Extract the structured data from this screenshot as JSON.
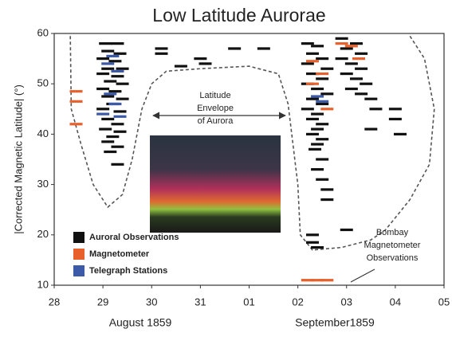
{
  "chart_data": {
    "type": "scatter",
    "title": "Low Latitude Aurorae",
    "y_label": "|Corrected Magnetic Latitude| (°)",
    "x_group_labels": [
      "August 1859",
      "September1859"
    ],
    "xlim": [
      0,
      8
    ],
    "ylim": [
      10,
      60
    ],
    "xticks": [
      {
        "value": 0,
        "label": "28"
      },
      {
        "value": 1,
        "label": "29"
      },
      {
        "value": 2,
        "label": "30"
      },
      {
        "value": 3,
        "label": "31"
      },
      {
        "value": 4,
        "label": "01"
      },
      {
        "value": 5,
        "label": "02"
      },
      {
        "value": 6,
        "label": "03"
      },
      {
        "value": 7,
        "label": "04"
      },
      {
        "value": 8,
        "label": "05"
      }
    ],
    "yticks": [
      10,
      20,
      30,
      40,
      50,
      60
    ],
    "legend": "bottom-left",
    "annotations": [
      {
        "lines": [
          "Latitude",
          "Envelope",
          "of Aurora"
        ]
      },
      {
        "lines": [
          "Bombay",
          "Magnetometer",
          "Observations"
        ]
      }
    ],
    "envelope": {
      "color": "#555555",
      "x": [
        0.33,
        0.35,
        0.55,
        0.8,
        1.1,
        1.4,
        1.6,
        1.8,
        2.0,
        2.3,
        3.0,
        4.0,
        4.6,
        4.8,
        5.0,
        5.05,
        5.3,
        5.9,
        6.5,
        6.8,
        7.3,
        7.7,
        7.8,
        7.6,
        7.3
      ],
      "values": [
        59.5,
        45,
        38,
        30,
        25.5,
        28,
        35,
        45,
        50,
        52.5,
        53,
        53.5,
        52,
        46,
        30,
        20,
        17,
        17.5,
        19,
        21,
        27,
        34,
        45,
        55,
        59.5
      ]
    },
    "series": [
      {
        "name": "Auroral Observations",
        "color": "#111111",
        "x": [
          1.05,
          1.3,
          1.1,
          1.35,
          1.0,
          1.25,
          1.1,
          1.4,
          1.0,
          1.3,
          1.15,
          1.4,
          1.0,
          1.25,
          1.1,
          1.4,
          1.2,
          1.0,
          1.35,
          1.1,
          1.3,
          1.05,
          1.35,
          1.2,
          1.1,
          1.3,
          1.15,
          1.3,
          2.2,
          2.2,
          3.0,
          3.1,
          2.6,
          3.7,
          4.3,
          5.2,
          5.4,
          5.3,
          5.5,
          5.2,
          5.6,
          5.3,
          5.5,
          5.2,
          5.4,
          5.6,
          5.3,
          5.5,
          5.2,
          5.4,
          5.3,
          5.5,
          5.4,
          5.3,
          5.5,
          5.4,
          5.35,
          5.5,
          5.4,
          5.5,
          5.6,
          5.6,
          5.3,
          5.3,
          5.4,
          5.9,
          6.2,
          6.0,
          6.3,
          5.9,
          6.1,
          6.3,
          6.0,
          6.2,
          6.4,
          6.1,
          6.3,
          6.5,
          6.5,
          6.0,
          6.6,
          7.0,
          7.0,
          7.1
        ],
        "values": [
          58,
          58,
          56.5,
          56,
          55,
          54.5,
          53,
          53,
          52,
          51.5,
          50.5,
          50,
          49,
          48.5,
          47.5,
          47,
          46,
          45,
          44.5,
          43,
          42,
          41,
          40.5,
          39.5,
          38.5,
          37.5,
          36.5,
          34,
          57,
          56,
          55,
          54,
          53.5,
          57,
          57,
          58,
          57.5,
          56,
          55,
          54,
          53,
          52,
          51,
          50,
          49,
          48,
          47,
          46,
          45,
          44,
          43,
          42,
          41,
          40,
          39,
          38,
          37,
          35,
          33,
          31,
          29,
          27,
          20,
          18.5,
          17.5,
          59,
          58,
          57,
          56,
          55,
          54,
          53,
          52,
          51,
          50,
          49,
          48,
          47,
          41,
          21,
          45,
          45,
          43,
          40
        ]
      },
      {
        "name": "Magnetometer",
        "color": "#e8602c",
        "x": [
          0.45,
          0.45,
          0.45,
          5.3,
          5.5,
          5.3,
          5.6,
          5.9,
          6.1,
          6.25,
          5.2,
          5.4,
          5.6
        ],
        "values": [
          48.5,
          46.5,
          42,
          54.5,
          52,
          50,
          45,
          58,
          57.5,
          55,
          11,
          11,
          11
        ]
      },
      {
        "name": "Telegraph Stations",
        "color": "#3c5aa8",
        "x": [
          1.1,
          1.3,
          1.15,
          1.25,
          1.0,
          1.35,
          1.2,
          5.4,
          5.5
        ],
        "values": [
          54,
          52.5,
          48,
          46,
          44,
          43.5,
          55.5,
          47.5,
          46.5
        ]
      }
    ]
  }
}
